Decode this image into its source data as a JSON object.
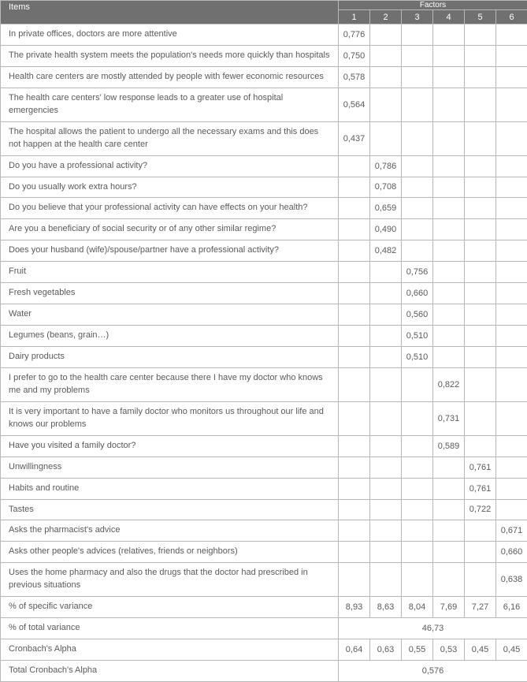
{
  "table": {
    "header": {
      "items_label": "Items",
      "factors_label": "Factors",
      "factor_numbers": [
        "1",
        "2",
        "3",
        "4",
        "5",
        "6"
      ]
    },
    "rows": [
      {
        "item": "In private offices, doctors are more attentive",
        "vals": [
          "0,776",
          "",
          "",
          "",
          "",
          ""
        ]
      },
      {
        "item": "The private health system meets the population's needs more quickly than hospitals",
        "vals": [
          "0,750",
          "",
          "",
          "",
          "",
          ""
        ]
      },
      {
        "item": "Health care centers are mostly attended by people with fewer economic resources",
        "vals": [
          "0,578",
          "",
          "",
          "",
          "",
          ""
        ]
      },
      {
        "item": "The health care centers' low response leads to a greater use of hospital emergencies",
        "vals": [
          "0,564",
          "",
          "",
          "",
          "",
          ""
        ]
      },
      {
        "item": "The hospital allows the patient to undergo all the necessary exams and this does not happen at the health care center",
        "vals": [
          "0,437",
          "",
          "",
          "",
          "",
          ""
        ]
      },
      {
        "item": "Do you have a professional activity?",
        "vals": [
          "",
          "0,786",
          "",
          "",
          "",
          ""
        ]
      },
      {
        "item": "Do you usually work extra hours?",
        "vals": [
          "",
          "0,708",
          "",
          "",
          "",
          ""
        ]
      },
      {
        "item": "Do you believe that your professional activity can have effects on your health?",
        "vals": [
          "",
          "0,659",
          "",
          "",
          "",
          ""
        ]
      },
      {
        "item": "Are you a beneficiary of social security or of any other similar regime?",
        "vals": [
          "",
          "0,490",
          "",
          "",
          "",
          ""
        ]
      },
      {
        "item": "Does your husband (wife)/spouse/partner have a professional activity?",
        "vals": [
          "",
          "0,482",
          "",
          "",
          "",
          ""
        ]
      },
      {
        "item": "Fruit",
        "vals": [
          "",
          "",
          "0,756",
          "",
          "",
          ""
        ]
      },
      {
        "item": "Fresh vegetables",
        "vals": [
          "",
          "",
          "0,660",
          "",
          "",
          ""
        ]
      },
      {
        "item": "Water",
        "vals": [
          "",
          "",
          "0,560",
          "",
          "",
          ""
        ]
      },
      {
        "item": "Legumes (beans, grain…)",
        "vals": [
          "",
          "",
          "0,510",
          "",
          "",
          ""
        ]
      },
      {
        "item": "Dairy products",
        "vals": [
          "",
          "",
          "0,510",
          "",
          "",
          ""
        ]
      },
      {
        "item": "I prefer to go to the health care center because there I have my doctor who knows me and my problems",
        "vals": [
          "",
          "",
          "",
          "0,822",
          "",
          ""
        ]
      },
      {
        "item": "It is very important to have a family doctor who monitors us throughout our life and knows our problems",
        "vals": [
          "",
          "",
          "",
          "0,731",
          "",
          ""
        ]
      },
      {
        "item": "Have you visited a family doctor?",
        "vals": [
          "",
          "",
          "",
          "0,589",
          "",
          ""
        ]
      },
      {
        "item": "Unwillingness",
        "vals": [
          "",
          "",
          "",
          "",
          "0,761",
          ""
        ]
      },
      {
        "item": "Habits and routine",
        "vals": [
          "",
          "",
          "",
          "",
          "0,761",
          ""
        ]
      },
      {
        "item": "Tastes",
        "vals": [
          "",
          "",
          "",
          "",
          "0,722",
          ""
        ]
      },
      {
        "item": "Asks the pharmacist's advice",
        "vals": [
          "",
          "",
          "",
          "",
          "",
          "0,671"
        ]
      },
      {
        "item": "Asks other people's advices (relatives, friends or neighbors)",
        "vals": [
          "",
          "",
          "",
          "",
          "",
          "0,660"
        ]
      },
      {
        "item": "Uses the home pharmacy and also the drugs that the doctor had prescribed in previous situations",
        "vals": [
          "",
          "",
          "",
          "",
          "",
          "0,638"
        ]
      }
    ],
    "summary": {
      "specific_variance": {
        "label": "% of specific variance",
        "vals": [
          "8,93",
          "8,63",
          "8,04",
          "7,69",
          "7,27",
          "6,16"
        ]
      },
      "total_variance": {
        "label": "% of total variance",
        "value": "46,73"
      },
      "cronbach_alpha": {
        "label": "Cronbach's Alpha",
        "vals": [
          "0,64",
          "0,63",
          "0,55",
          "0,53",
          "0,45",
          "0,45"
        ]
      },
      "total_cronbach": {
        "label": "Total Cronbach's Alpha",
        "value": "0,576"
      }
    },
    "colors": {
      "header_bg": "#707070",
      "header_text": "#ffffff",
      "border": "#b8b8b8",
      "body_text": "#5a5a5a"
    }
  }
}
